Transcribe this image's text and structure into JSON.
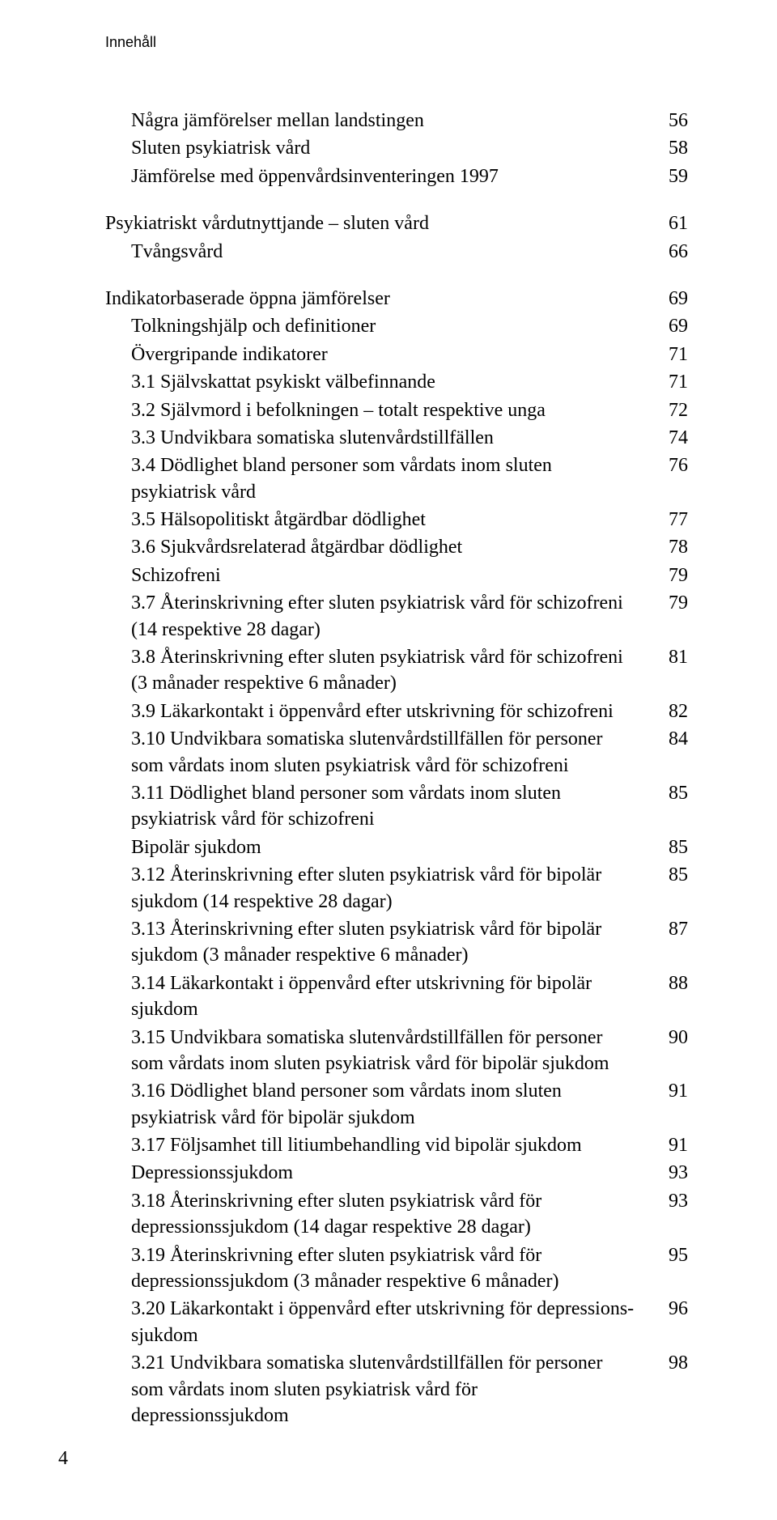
{
  "runningHead": "Innehåll",
  "pageNumber": "4",
  "toc": [
    {
      "label": "Några jämförelser mellan landstingen",
      "page": "56",
      "indent": 1,
      "gap": false
    },
    {
      "label": "Sluten psykiatrisk vård",
      "page": "58",
      "indent": 1,
      "gap": false
    },
    {
      "label": "Jämförelse med öppenvårdsinventeringen 1997",
      "page": "59",
      "indent": 1,
      "gap": false
    },
    {
      "label": "Psykiatriskt vårdutnyttjande – sluten vård",
      "page": "61",
      "indent": 0,
      "gap": true
    },
    {
      "label": "Tvångsvård",
      "page": "66",
      "indent": 1,
      "gap": false
    },
    {
      "label": "Indikatorbaserade öppna jämförelser",
      "page": "69",
      "indent": 0,
      "gap": true
    },
    {
      "label": "Tolkningshjälp och definitioner",
      "page": "69",
      "indent": 1,
      "gap": false
    },
    {
      "label": "Övergripande indikatorer",
      "page": "71",
      "indent": 1,
      "gap": false
    },
    {
      "label": "3.1 Självskattat psykiskt välbefinnande",
      "page": "71",
      "indent": 1,
      "gap": false
    },
    {
      "label": "3.2 Självmord i befolkningen – totalt respektive unga",
      "page": "72",
      "indent": 1,
      "gap": false
    },
    {
      "label": "3.3 Undvikbara somatiska slutenvårdstillfällen",
      "page": "74",
      "indent": 1,
      "gap": false
    },
    {
      "label": "3.4 Dödlighet bland personer som vårdats inom sluten psykiatrisk vård",
      "page": "76",
      "indent": 1,
      "gap": false
    },
    {
      "label": "3.5 Hälsopolitiskt åtgärdbar dödlighet",
      "page": "77",
      "indent": 1,
      "gap": false
    },
    {
      "label": "3.6 Sjukvårdsrelaterad åtgärdbar dödlighet",
      "page": "78",
      "indent": 1,
      "gap": false
    },
    {
      "label": "Schizofreni",
      "page": "79",
      "indent": 1,
      "gap": false
    },
    {
      "label": "3.7 Återinskrivning efter sluten psykiatrisk vård för schizofreni (14 respektive 28 dagar)",
      "page": "79",
      "indent": 1,
      "gap": false
    },
    {
      "label": "3.8 Återinskrivning efter sluten psykiatrisk vård för schizofreni (3 månader respektive 6 månader)",
      "page": "81",
      "indent": 1,
      "gap": false
    },
    {
      "label": "3.9 Läkarkontakt i öppenvård efter utskrivning för schizofreni",
      "page": "82",
      "indent": 1,
      "gap": false
    },
    {
      "label": "3.10 Undvikbara somatiska slutenvårdstillfällen för personer som vårdats inom sluten psykiatrisk vård för schizofreni",
      "page": "84",
      "indent": 1,
      "gap": false
    },
    {
      "label": "3.11 Dödlighet bland personer som vårdats inom sluten psykiatrisk vård för schizofreni",
      "page": "85",
      "indent": 1,
      "gap": false
    },
    {
      "label": "Bipolär sjukdom",
      "page": "85",
      "indent": 1,
      "gap": false
    },
    {
      "label": "3.12 Återinskrivning efter sluten psykiatrisk vård för bipolär sjukdom (14 respektive 28 dagar)",
      "page": "85",
      "indent": 1,
      "gap": false
    },
    {
      "label": "3.13 Återinskrivning efter sluten psykiatrisk vård för bipolär sjukdom (3 månader respektive 6 månader)",
      "page": "87",
      "indent": 1,
      "gap": false
    },
    {
      "label": "3.14 Läkarkontakt i öppenvård efter utskrivning för bipolär sjukdom",
      "page": "88",
      "indent": 1,
      "gap": false
    },
    {
      "label": "3.15 Undvikbara somatiska slutenvårdstillfällen för personer som vårdats inom sluten psykiatrisk vård för bipolär sjukdom",
      "page": "90",
      "indent": 1,
      "gap": false
    },
    {
      "label": "3.16 Dödlighet bland personer som vårdats inom sluten psykiatrisk vård för bipolär sjukdom",
      "page": "91",
      "indent": 1,
      "gap": false
    },
    {
      "label": "3.17 Följsamhet till litiumbehandling vid bipolär sjukdom",
      "page": "91",
      "indent": 1,
      "gap": false
    },
    {
      "label": "Depressionssjukdom",
      "page": "93",
      "indent": 1,
      "gap": false
    },
    {
      "label": "3.18 Återinskrivning efter sluten psykiatrisk vård för depressions­sjukdom (14 dagar respektive 28 dagar)",
      "page": "93",
      "indent": 1,
      "gap": false
    },
    {
      "label": "3.19 Återinskrivning efter sluten psykiatrisk vård för depressions­sjukdom (3 månader respektive 6 månader)",
      "page": "95",
      "indent": 1,
      "gap": false
    },
    {
      "label": "3.20 Läkarkontakt i öppenvård efter utskrivning för depressions­sjukdom",
      "page": "96",
      "indent": 1,
      "gap": false
    },
    {
      "label": "3.21 Undvikbara somatiska slutenvårdstillfällen för personer som vårdats inom sluten psykiatrisk vård för depressionssjukdom",
      "page": "98",
      "indent": 1,
      "gap": false
    }
  ]
}
